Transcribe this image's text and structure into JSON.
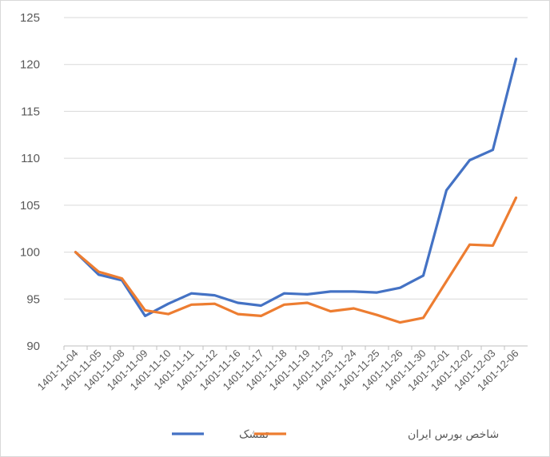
{
  "chart_data": {
    "type": "line",
    "title": "",
    "xlabel": "",
    "ylabel": "",
    "ylim": [
      90,
      125
    ],
    "yticks": [
      90,
      95,
      100,
      105,
      110,
      115,
      120,
      125
    ],
    "grid": true,
    "legend_position": "bottom",
    "categories": [
      "1401-11-04",
      "1401-11-05",
      "1401-11-08",
      "1401-11-09",
      "1401-11-10",
      "1401-11-11",
      "1401-11-12",
      "1401-11-16",
      "1401-11-17",
      "1401-11-18",
      "1401-11-19",
      "1401-11-23",
      "1401-11-24",
      "1401-11-25",
      "1401-11-26",
      "1401-11-30",
      "1401-12-01",
      "1401-12-02",
      "1401-12-03",
      "1401-12-06"
    ],
    "series": [
      {
        "name": "تمشک",
        "color": "#4472c4",
        "values": [
          100,
          97.6,
          97.0,
          93.2,
          94.5,
          95.6,
          95.4,
          94.6,
          94.3,
          95.6,
          95.5,
          95.8,
          95.8,
          95.7,
          96.2,
          97.5,
          106.6,
          109.8,
          110.9,
          120.6
        ]
      },
      {
        "name": "شاخص بورس ایران",
        "color": "#ed7d31",
        "values": [
          100,
          97.9,
          97.2,
          93.8,
          93.4,
          94.4,
          94.5,
          93.4,
          93.2,
          94.4,
          94.6,
          93.7,
          94.0,
          93.3,
          92.5,
          93.0,
          96.9,
          100.8,
          100.7,
          105.8
        ]
      }
    ]
  }
}
